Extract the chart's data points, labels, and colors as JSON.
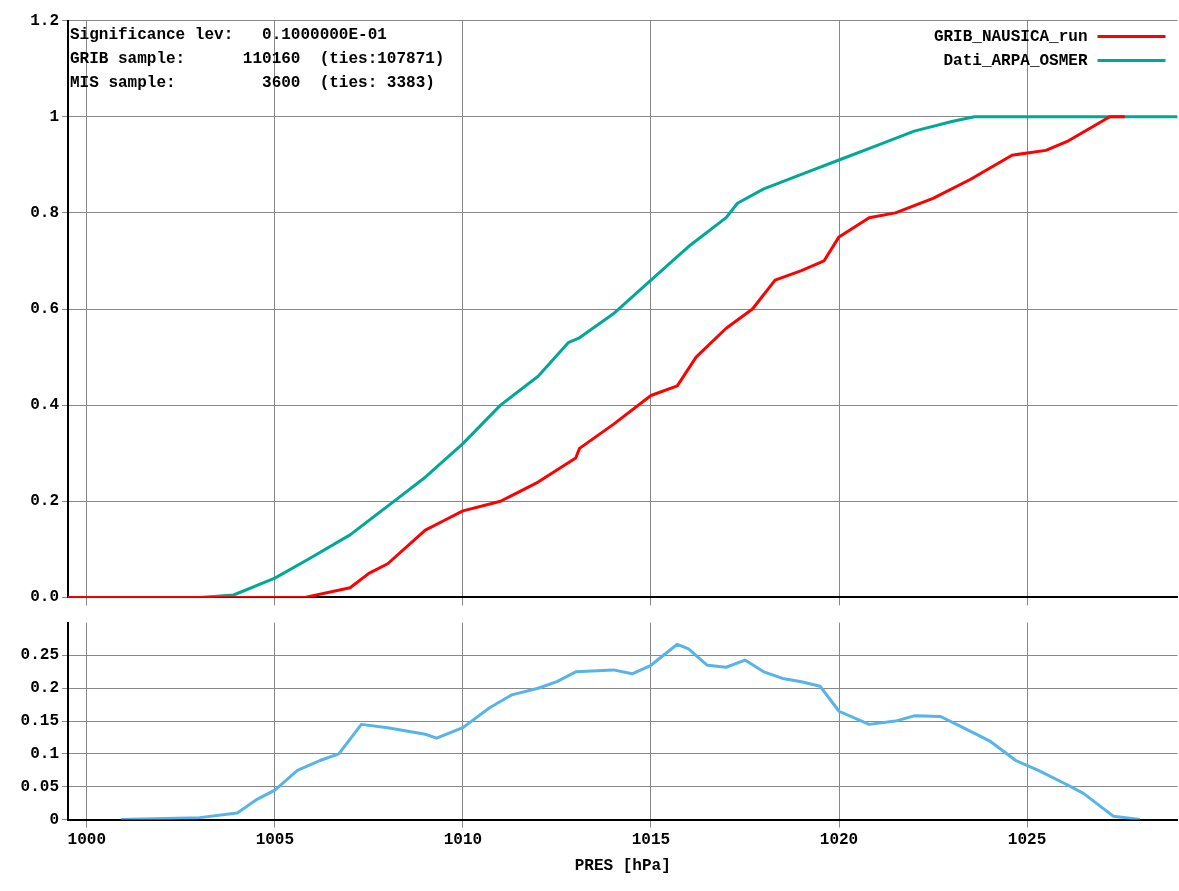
{
  "chart_data": [
    {
      "type": "line",
      "annotations": [
        "Significance lev:   0.1000000E-01",
        "GRIB sample:      110160  (ties:107871)",
        "MIS sample:         3600  (ties: 3383)"
      ],
      "series": [
        {
          "name": "GRIB_NAUSICA_run",
          "color": "#ff0000",
          "x": [
            999.5,
            1005,
            1005.8,
            1007,
            1007.5,
            1008,
            1009,
            1009.5,
            1010,
            1011,
            1012,
            1013,
            1013.1,
            1014,
            1015,
            1015.7,
            1016.2,
            1017,
            1017.7,
            1018.3,
            1019,
            1019.6,
            1020,
            1020.8,
            1021.5,
            1022.5,
            1023.5,
            1024.6,
            1025.5,
            1026.1,
            1027.2,
            1027.6
          ],
          "values": [
            0,
            0,
            0,
            0.02,
            0.05,
            0.07,
            0.14,
            0.16,
            0.18,
            0.2,
            0.24,
            0.29,
            0.31,
            0.36,
            0.42,
            0.44,
            0.5,
            0.56,
            0.6,
            0.66,
            0.68,
            0.7,
            0.75,
            0.79,
            0.8,
            0.83,
            0.87,
            0.92,
            0.93,
            0.95,
            1,
            1
          ]
        },
        {
          "name": "Dati_ARPA_OSMER",
          "color": "#00a896",
          "x": [
            999.5,
            1003,
            1003.9,
            1005,
            1005.9,
            1007,
            1008,
            1009,
            1010,
            1011,
            1012,
            1012.8,
            1013.1,
            1014,
            1015,
            1016,
            1017,
            1017.3,
            1018,
            1019,
            1020,
            1021,
            1022,
            1023,
            1023.6,
            1029
          ],
          "values": [
            0,
            0,
            0.005,
            0.04,
            0.08,
            0.13,
            0.19,
            0.25,
            0.32,
            0.4,
            0.46,
            0.53,
            0.54,
            0.59,
            0.66,
            0.73,
            0.79,
            0.82,
            0.85,
            0.88,
            0.91,
            0.94,
            0.97,
            0.99,
            1,
            1
          ]
        }
      ],
      "xlim": [
        999.5,
        1029
      ],
      "xticks": [
        1000,
        1005,
        1010,
        1015,
        1020,
        1025
      ],
      "ylim": [
        0,
        1.2
      ],
      "yticks": [
        {
          "value": 0,
          "label": "0.0"
        },
        0.2,
        0.4,
        0.6,
        0.8,
        1,
        1.2
      ],
      "tick_labels": "y",
      "grid": true,
      "legend": "top right"
    },
    {
      "type": "line",
      "xlabel": "PRES [hPa]",
      "series": [
        {
          "color": "#56b4e9",
          "x": [
            1000.9,
            1003,
            1004,
            1004.5,
            1005,
            1005.6,
            1006.2,
            1006.7,
            1007.3,
            1008,
            1008.5,
            1009,
            1009.3,
            1010,
            1010.7,
            1011.3,
            1012,
            1012.5,
            1013,
            1014,
            1014.5,
            1015,
            1015.7,
            1016,
            1016.5,
            1017,
            1017.5,
            1018,
            1018.5,
            1019,
            1019.5,
            1020,
            1020.8,
            1021.5,
            1022,
            1022.7,
            1023.3,
            1024,
            1024.7,
            1025.3,
            1026,
            1026.5,
            1027.3,
            1028
          ],
          "values": [
            0,
            0.003,
            0.01,
            0.03,
            0.045,
            0.075,
            0.09,
            0.1,
            0.145,
            0.14,
            0.135,
            0.13,
            0.124,
            0.14,
            0.17,
            0.19,
            0.2,
            0.21,
            0.225,
            0.228,
            0.222,
            0.235,
            0.267,
            0.26,
            0.235,
            0.232,
            0.243,
            0.225,
            0.215,
            0.21,
            0.203,
            0.165,
            0.145,
            0.15,
            0.158,
            0.157,
            0.14,
            0.12,
            0.09,
            0.075,
            0.055,
            0.04,
            0.005,
            0
          ]
        }
      ],
      "xlim": [
        999.5,
        1029
      ],
      "xticks": [
        1000,
        1005,
        1010,
        1015,
        1020,
        1025
      ],
      "ylim": [
        0,
        0.3
      ],
      "yticks": [
        0,
        0.05,
        0.1,
        0.15,
        0.2,
        0.25
      ],
      "grid": true
    }
  ]
}
